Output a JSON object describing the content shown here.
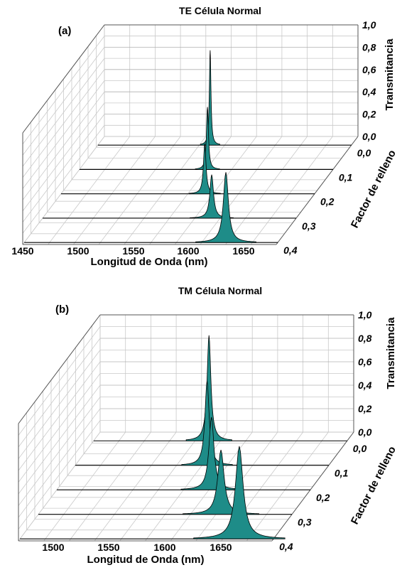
{
  "chart_data": [
    {
      "type": "line",
      "panel_label": "(a)",
      "title": "TE Célula Normal",
      "xlabel": "Longitud de Onda (nm)",
      "ylabel": "Factor de relleno",
      "zlabel": "Transmitancia",
      "x_ticks": [
        "1450",
        "1500",
        "1550",
        "1600",
        "1650"
      ],
      "y_ticks": [
        "0,0",
        "0,1",
        "0,2",
        "0,3",
        "0,4"
      ],
      "z_ticks": [
        "0,0",
        "0,2",
        "0,4",
        "0,6",
        "0,8",
        "1,0"
      ],
      "xlim": [
        1450,
        1660
      ],
      "zlim": [
        0,
        1
      ],
      "grid": true,
      "series": [
        {
          "fill_factor": 0.0,
          "peak_wavelength": 1543,
          "peak_transmittance": 0.85,
          "width": 0.8
        },
        {
          "fill_factor": 0.1,
          "peak_wavelength": 1556,
          "peak_transmittance": 0.56,
          "width": 1.0
        },
        {
          "fill_factor": 0.2,
          "peak_wavelength": 1569,
          "peak_transmittance": 0.45,
          "width": 1.3
        },
        {
          "fill_factor": 0.3,
          "peak_wavelength": 1590,
          "peak_transmittance": 0.39,
          "width": 1.8
        },
        {
          "fill_factor": 0.4,
          "peak_wavelength": 1617,
          "peak_transmittance": 0.63,
          "width": 2.5
        }
      ]
    },
    {
      "type": "line",
      "panel_label": "(b)",
      "title": "TM Célula Normal",
      "xlabel": "Longitud de Onda (nm)",
      "ylabel": "Factor de relleno",
      "zlabel": "Transmitancia",
      "x_ticks": [
        "1500",
        "1550",
        "1600",
        "1650"
      ],
      "y_ticks": [
        "0,0",
        "0,1",
        "0,2",
        "0,3",
        "0,4"
      ],
      "z_ticks": [
        "0,0",
        "0,2",
        "0,4",
        "0,6",
        "0,8",
        "1,0"
      ],
      "xlim": [
        1475,
        1675
      ],
      "zlim": [
        0,
        1
      ],
      "grid": true,
      "series": [
        {
          "fill_factor": 0.0,
          "peak_wavelength": 1566,
          "peak_transmittance": 0.9,
          "width": 1.8
        },
        {
          "fill_factor": 0.1,
          "peak_wavelength": 1579,
          "peak_transmittance": 0.72,
          "width": 2.0
        },
        {
          "fill_factor": 0.2,
          "peak_wavelength": 1597,
          "peak_transmittance": 0.62,
          "width": 2.4
        },
        {
          "fill_factor": 0.3,
          "peak_wavelength": 1619,
          "peak_transmittance": 0.55,
          "width": 3.0
        },
        {
          "fill_factor": 0.4,
          "peak_wavelength": 1648,
          "peak_transmittance": 0.79,
          "width": 3.6
        }
      ]
    }
  ],
  "colors": {
    "fill": "#1e8c88",
    "line": "#000000",
    "grid": "#c9c9c9"
  }
}
